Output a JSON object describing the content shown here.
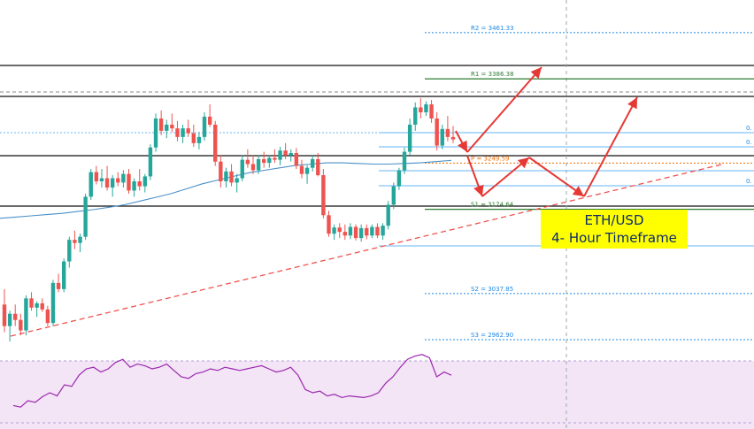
{
  "title_box": {
    "line1": "ETH/USD",
    "line2": "4- Hour Timeframe"
  },
  "pivots": [
    {
      "name": "R2",
      "label": "R2 = 3461.33",
      "value": 3461.33,
      "color": "#1e88e5",
      "style": "dotted"
    },
    {
      "name": "R1",
      "label": "R1 = 3386.38",
      "value": 3386.38,
      "color": "#2e7d32",
      "style": "solid"
    },
    {
      "name": "P",
      "label": "P = 3249.59",
      "value": 3249.59,
      "color": "#ef6c00",
      "style": "dotted"
    },
    {
      "name": "S1",
      "label": "S1 = 3174.64",
      "value": 3174.64,
      "color": "#2e7d32",
      "style": "solid"
    },
    {
      "name": "S2",
      "label": "S2 = 3037.85",
      "value": 3037.85,
      "color": "#1e88e5",
      "style": "dotted"
    },
    {
      "name": "S3",
      "label": "S3 = 2962.90",
      "value": 2962.9,
      "color": "#1e88e5",
      "style": "dotted"
    }
  ],
  "fib_labels": [
    "0.",
    "0.",
    "0."
  ],
  "colors": {
    "up": "#26a69a",
    "down": "#ef5350",
    "ma": "#4a90c8",
    "trendline": "#ef5350",
    "arrows": "#e53935",
    "rsi_line": "#9c27b0",
    "rsi_bg": "#f3e5f5",
    "title_bg": "#ffff00",
    "title_text": "#0b2a6f"
  },
  "chart_data": {
    "type": "candlestick",
    "symbol": "ETH/USD",
    "timeframe": "4H",
    "ylim": [
      2940,
      3500
    ],
    "candles": [
      [
        3020,
        3045,
        2975,
        2985
      ],
      [
        2985,
        3010,
        2960,
        3005
      ],
      [
        3005,
        3020,
        2985,
        2995
      ],
      [
        2995,
        3005,
        2970,
        2978
      ],
      [
        2978,
        3035,
        2970,
        3030
      ],
      [
        3030,
        3040,
        3010,
        3015
      ],
      [
        3015,
        3025,
        3000,
        3022
      ],
      [
        3022,
        3030,
        3008,
        3012
      ],
      [
        3012,
        3018,
        2985,
        2990
      ],
      [
        2990,
        3060,
        2985,
        3055
      ],
      [
        3055,
        3070,
        3040,
        3045
      ],
      [
        3045,
        3095,
        3040,
        3090
      ],
      [
        3090,
        3130,
        3080,
        3125
      ],
      [
        3125,
        3140,
        3110,
        3120
      ],
      [
        3120,
        3135,
        3105,
        3130
      ],
      [
        3130,
        3200,
        3125,
        3195
      ],
      [
        3195,
        3240,
        3190,
        3235
      ],
      [
        3235,
        3245,
        3215,
        3220
      ],
      [
        3220,
        3240,
        3210,
        3225
      ],
      [
        3225,
        3245,
        3205,
        3210
      ],
      [
        3210,
        3230,
        3195,
        3225
      ],
      [
        3225,
        3235,
        3212,
        3218
      ],
      [
        3218,
        3238,
        3210,
        3232
      ],
      [
        3232,
        3240,
        3200,
        3205
      ],
      [
        3205,
        3225,
        3195,
        3220
      ],
      [
        3220,
        3240,
        3205,
        3212
      ],
      [
        3212,
        3232,
        3202,
        3228
      ],
      [
        3228,
        3280,
        3222,
        3275
      ],
      [
        3275,
        3330,
        3268,
        3322
      ],
      [
        3322,
        3335,
        3295,
        3302
      ],
      [
        3302,
        3320,
        3290,
        3312
      ],
      [
        3312,
        3330,
        3300,
        3306
      ],
      [
        3306,
        3318,
        3285,
        3292
      ],
      [
        3292,
        3312,
        3282,
        3306
      ],
      [
        3306,
        3320,
        3292,
        3298
      ],
      [
        3298,
        3312,
        3276,
        3282
      ],
      [
        3282,
        3300,
        3272,
        3292
      ],
      [
        3292,
        3332,
        3286,
        3325
      ],
      [
        3325,
        3345,
        3308,
        3312
      ],
      [
        3312,
        3318,
        3245,
        3252
      ],
      [
        3252,
        3262,
        3210,
        3220
      ],
      [
        3220,
        3242,
        3210,
        3236
      ],
      [
        3236,
        3248,
        3212,
        3218
      ],
      [
        3218,
        3232,
        3202,
        3225
      ],
      [
        3225,
        3262,
        3220,
        3255
      ],
      [
        3255,
        3272,
        3242,
        3248
      ],
      [
        3248,
        3262,
        3232,
        3238
      ],
      [
        3238,
        3262,
        3232,
        3256
      ],
      [
        3256,
        3268,
        3242,
        3250
      ],
      [
        3250,
        3262,
        3242,
        3258
      ],
      [
        3258,
        3272,
        3250,
        3255
      ],
      [
        3255,
        3276,
        3246,
        3270
      ],
      [
        3270,
        3282,
        3256,
        3262
      ],
      [
        3262,
        3272,
        3252,
        3266
      ],
      [
        3266,
        3274,
        3240,
        3245
      ],
      [
        3245,
        3255,
        3225,
        3232
      ],
      [
        3232,
        3246,
        3216,
        3242
      ],
      [
        3242,
        3262,
        3236,
        3256
      ],
      [
        3256,
        3266,
        3228,
        3230
      ],
      [
        3230,
        3240,
        3160,
        3165
      ],
      [
        3165,
        3172,
        3130,
        3135
      ],
      [
        3135,
        3150,
        3125,
        3145
      ],
      [
        3145,
        3152,
        3128,
        3138
      ],
      [
        3138,
        3150,
        3125,
        3132
      ],
      [
        3132,
        3152,
        3126,
        3146
      ],
      [
        3146,
        3150,
        3124,
        3128
      ],
      [
        3128,
        3150,
        3122,
        3144
      ],
      [
        3144,
        3150,
        3126,
        3132
      ],
      [
        3132,
        3150,
        3128,
        3146
      ],
      [
        3146,
        3152,
        3128,
        3132
      ],
      [
        3132,
        3152,
        3125,
        3148
      ],
      [
        3148,
        3188,
        3142,
        3182
      ],
      [
        3182,
        3218,
        3175,
        3212
      ],
      [
        3212,
        3242,
        3206,
        3238
      ],
      [
        3238,
        3275,
        3232,
        3268
      ],
      [
        3268,
        3322,
        3262,
        3312
      ],
      [
        3312,
        3348,
        3302,
        3340
      ],
      [
        3340,
        3355,
        3322,
        3332
      ],
      [
        3332,
        3350,
        3326,
        3345
      ],
      [
        3345,
        3352,
        3315,
        3322
      ],
      [
        3322,
        3332,
        3270,
        3278
      ],
      [
        3278,
        3312,
        3272,
        3305
      ],
      [
        3305,
        3326,
        3285,
        3292
      ],
      [
        3292,
        3310,
        3282,
        3288
      ]
    ],
    "moving_average": [
      3160,
      3162,
      3164,
      3166,
      3168,
      3171,
      3174,
      3178,
      3182,
      3188,
      3194,
      3200,
      3208,
      3216,
      3222,
      3228,
      3234,
      3238,
      3242,
      3246,
      3248,
      3250,
      3250,
      3249,
      3248,
      3248,
      3249,
      3250,
      3252,
      3254
    ],
    "rsi": [
      24,
      22,
      30,
      28,
      35,
      40,
      36,
      50,
      48,
      62,
      70,
      72,
      66,
      70,
      78,
      82,
      72,
      76,
      74,
      70,
      72,
      76,
      68,
      60,
      58,
      64,
      66,
      70,
      68,
      72,
      70,
      68,
      70,
      72,
      74,
      70,
      66,
      68,
      72,
      62,
      44,
      40,
      42,
      36,
      38,
      34,
      36,
      35,
      34,
      36,
      40,
      52,
      60,
      72,
      82,
      86,
      88,
      84,
      60,
      66,
      62
    ]
  }
}
